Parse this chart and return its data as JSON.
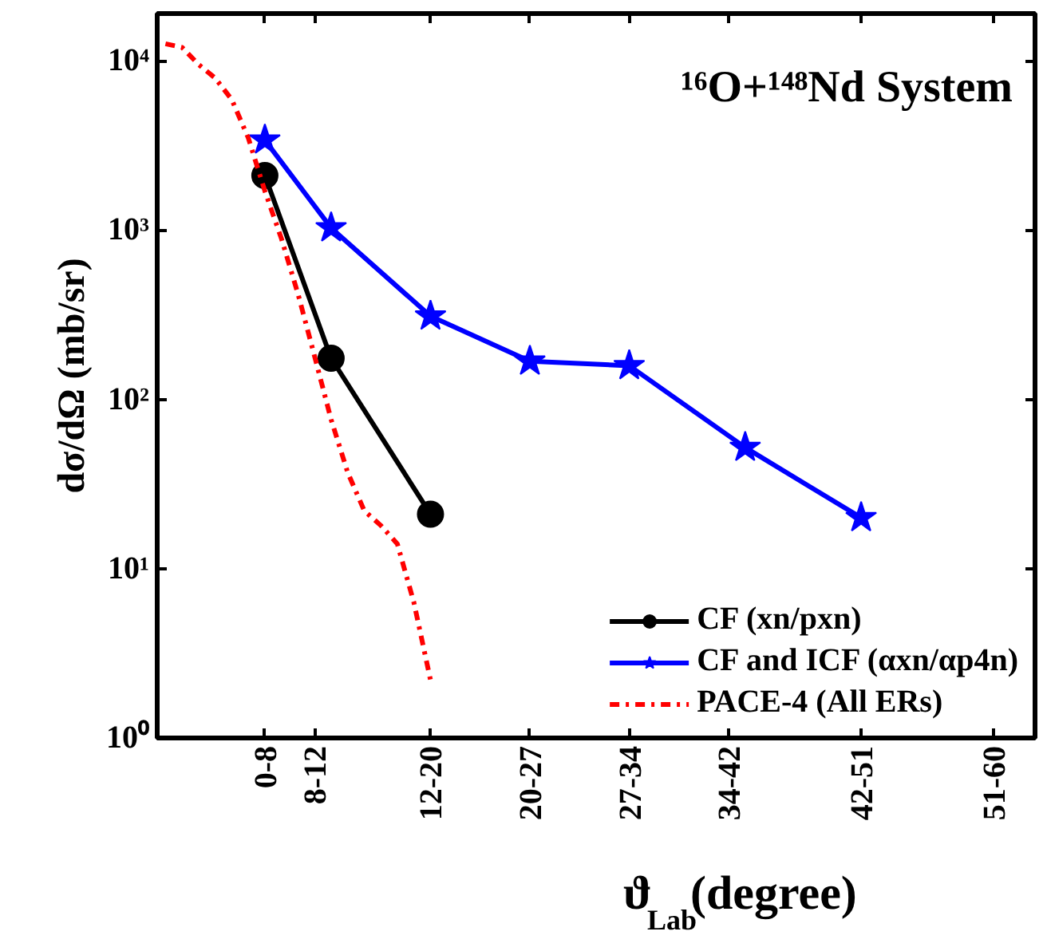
{
  "chart_data": {
    "type": "line",
    "title": "¹⁶O+¹⁴⁸Nd System",
    "xlabel": "ϑ$_{Lab}$(degree)",
    "ylabel": "dσ/dΩ (mb/sr)",
    "categories": [
      null,
      null,
      null,
      null,
      null,
      null,
      "0-8",
      null,
      null,
      "8-12",
      null,
      null,
      null,
      null,
      null,
      null,
      "12-20",
      null,
      null,
      null,
      null,
      null,
      "20-27",
      null,
      null,
      null,
      null,
      null,
      "27-34",
      null,
      null,
      null,
      null,
      null,
      "34-42",
      null,
      null,
      null,
      null,
      null,
      null,
      null,
      "42-51",
      null,
      null,
      null,
      null,
      null,
      null,
      null,
      "51-60",
      null,
      null
    ],
    "ylim": [
      1,
      19000
    ],
    "log": "y",
    "yticks": [
      {
        "value": 1,
        "label": "10⁰"
      },
      {
        "value": 10,
        "label": "10¹"
      },
      {
        "value": 100,
        "label": "10²"
      },
      {
        "value": 1000,
        "label": "10³"
      },
      {
        "value": 10000,
        "label": "10⁴"
      }
    ],
    "legend": "bottom right",
    "grid": false,
    "series": [
      {
        "name": "CF (xn/pxn)",
        "color": "#000000",
        "marker": "circle",
        "line_style": "solid",
        "values": [
          null,
          null,
          null,
          null,
          null,
          null,
          2100,
          null,
          null,
          null,
          175,
          null,
          null,
          null,
          null,
          null,
          21,
          null,
          null,
          null,
          null,
          null,
          null,
          null,
          null,
          null,
          null,
          null,
          null,
          null,
          null,
          null,
          null,
          null,
          null,
          null,
          null,
          null,
          null,
          null,
          null,
          null,
          null,
          null,
          null,
          null,
          null,
          null,
          null,
          null,
          null,
          null,
          null
        ]
      },
      {
        "name": "CF and ICF (αxn/αp4n)",
        "color": "#0000ff",
        "marker": "star",
        "line_style": "solid",
        "values": [
          null,
          null,
          null,
          null,
          null,
          null,
          3400,
          null,
          null,
          null,
          1030,
          null,
          null,
          null,
          null,
          null,
          310,
          null,
          null,
          null,
          null,
          null,
          168,
          null,
          null,
          null,
          null,
          null,
          158,
          null,
          null,
          null,
          null,
          null,
          null,
          52,
          null,
          null,
          null,
          null,
          null,
          null,
          20,
          null,
          null,
          null,
          null,
          null,
          null,
          null,
          null,
          null,
          null
        ]
      },
      {
        "name": "PACE-4 (All ERs)",
        "color": "#ff0000",
        "marker": "none",
        "line_style": "dashdot",
        "values": [
          12600,
          12000,
          9500,
          7900,
          5900,
          3500,
          1700,
          890,
          420,
          180,
          76,
          37,
          22,
          18,
          14,
          6.3,
          2.2,
          null,
          null,
          null,
          null,
          null,
          null,
          null,
          null,
          null,
          null,
          null,
          null,
          null,
          null,
          null,
          null,
          null,
          null,
          null,
          null,
          null,
          null,
          null,
          null,
          null,
          null,
          null,
          null,
          null,
          null,
          null,
          null,
          null,
          null,
          null,
          null
        ]
      }
    ]
  }
}
